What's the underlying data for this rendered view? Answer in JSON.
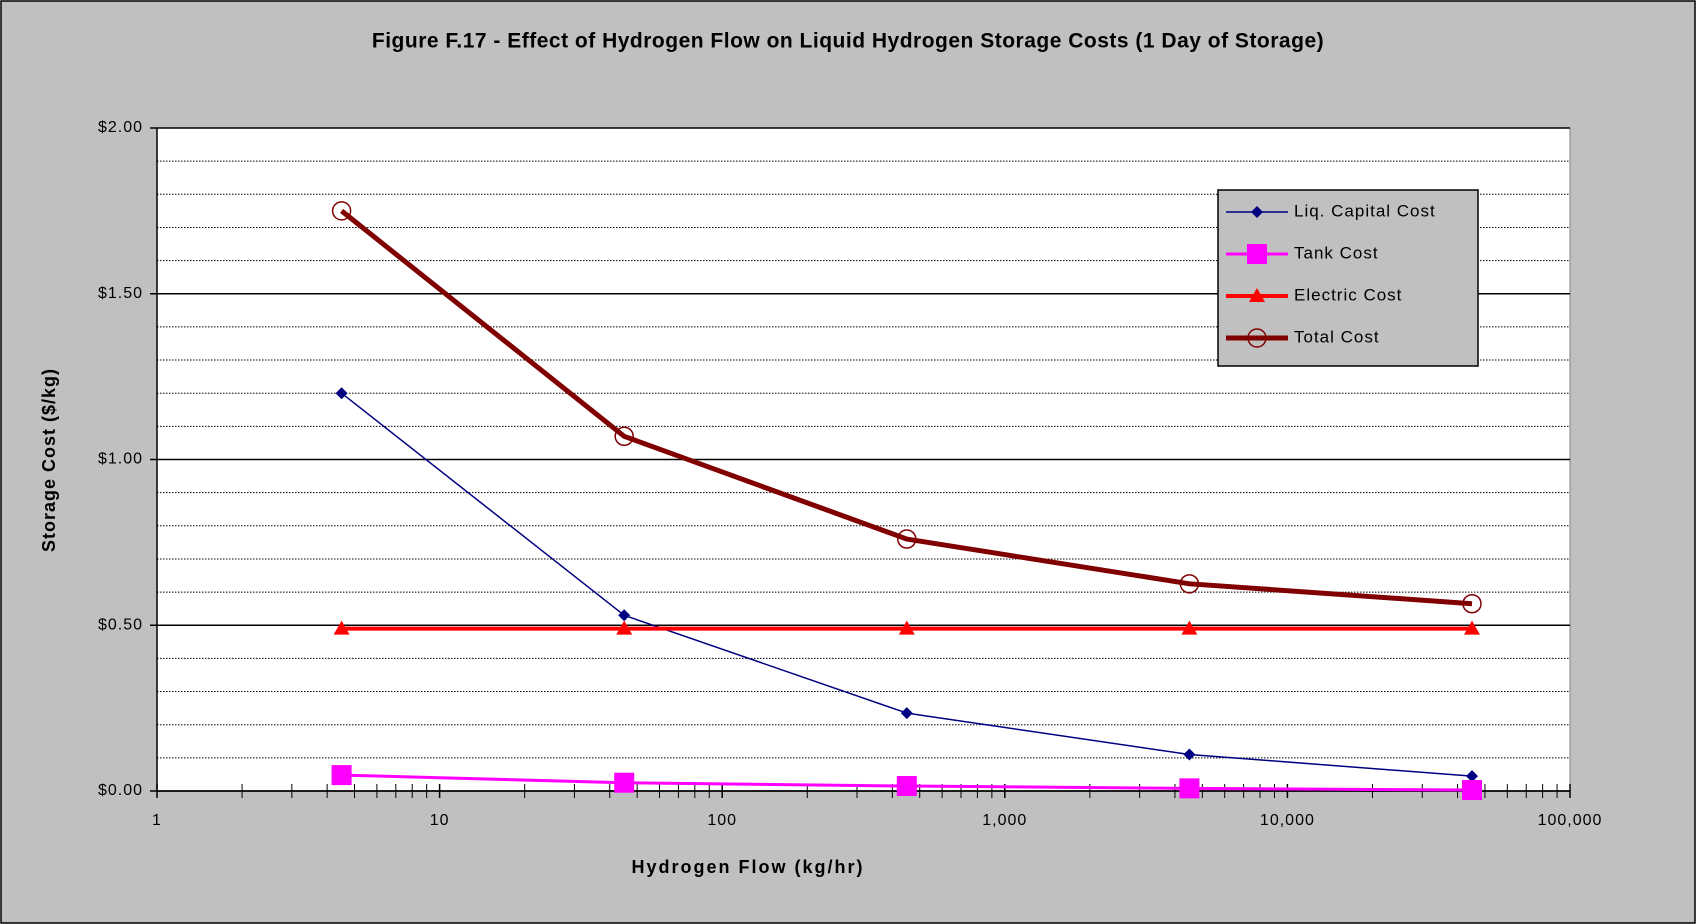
{
  "chart_data": {
    "type": "line",
    "title": "Figure F.17 - Effect of Hydrogen Flow on Liquid Hydrogen Storage Costs (1 Day of Storage)",
    "xlabel": "Hydrogen Flow (kg/hr)",
    "ylabel": "Storage Cost ($/kg)",
    "x": [
      4.5,
      45,
      450,
      4500,
      45000
    ],
    "xscale": "log",
    "xlim": [
      1,
      100000
    ],
    "xticks": [
      1,
      10,
      100,
      {
        "value": 1000,
        "label": "1,000"
      },
      {
        "value": 10000,
        "label": "10,000"
      },
      {
        "value": 100000,
        "label": "100,000"
      }
    ],
    "ylim": [
      0,
      2
    ],
    "yticks": [
      {
        "value": 0,
        "label": "$0.00"
      },
      {
        "value": 0.5,
        "label": "$0.50"
      },
      {
        "value": 1,
        "label": "$1.00"
      },
      {
        "value": 1.5,
        "label": "$1.50"
      },
      {
        "value": 2,
        "label": "$2.00"
      }
    ],
    "grid": true,
    "minor_grid": true,
    "legend": "upper right",
    "series": [
      {
        "name": "Liq. Capital Cost",
        "color": "#000080",
        "marker": "diamond",
        "line_width": 1.5,
        "values": [
          1.2,
          0.53,
          0.235,
          0.11,
          0.045
        ]
      },
      {
        "name": "Tank Cost",
        "color": "#ff00ff",
        "marker": "square",
        "line_width": 3,
        "values": [
          0.048,
          0.025,
          0.015,
          0.008,
          0.003
        ]
      },
      {
        "name": "Electric Cost",
        "color": "#ff0000",
        "marker": "triangle",
        "line_width": 4,
        "values": [
          0.49,
          0.49,
          0.49,
          0.49,
          0.49
        ]
      },
      {
        "name": "Total Cost",
        "color": "#800000",
        "marker": "circle",
        "line_width": 5,
        "values": [
          1.75,
          1.07,
          0.76,
          0.625,
          0.565
        ]
      }
    ]
  }
}
